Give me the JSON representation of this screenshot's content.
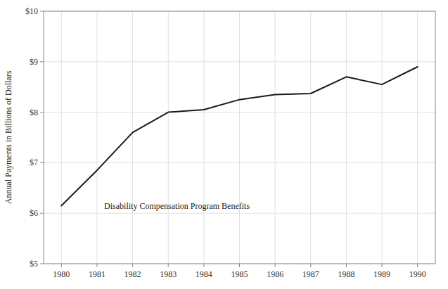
{
  "chart_data": {
    "type": "line",
    "ylabel": "Annual Payments in Billions of Dollars",
    "x": [
      1980,
      1981,
      1982,
      1983,
      1984,
      1985,
      1986,
      1987,
      1988,
      1989,
      1990
    ],
    "values": [
      6.15,
      6.85,
      7.6,
      8.0,
      8.05,
      8.25,
      8.35,
      8.37,
      8.7,
      8.55,
      8.9
    ],
    "color": "#1a1a1a",
    "xlim": [
      1979.5,
      1990.5
    ],
    "ylim": [
      5,
      10
    ],
    "xticks": [
      1980,
      1981,
      1982,
      1983,
      1984,
      1985,
      1986,
      1987,
      1988,
      1989,
      1990
    ],
    "yticks": [
      {
        "value": 5,
        "label": "$5"
      },
      {
        "value": 6,
        "label": "$6"
      },
      {
        "value": 7,
        "label": "$7"
      },
      {
        "value": 8,
        "label": "$8"
      },
      {
        "value": 9,
        "label": "$9"
      },
      {
        "value": 10,
        "label": "$10"
      }
    ],
    "grid": true,
    "annotations": [
      {
        "text": "Disability Compensation Program Benefits",
        "x": 1981.2,
        "y": 6.08
      }
    ]
  }
}
